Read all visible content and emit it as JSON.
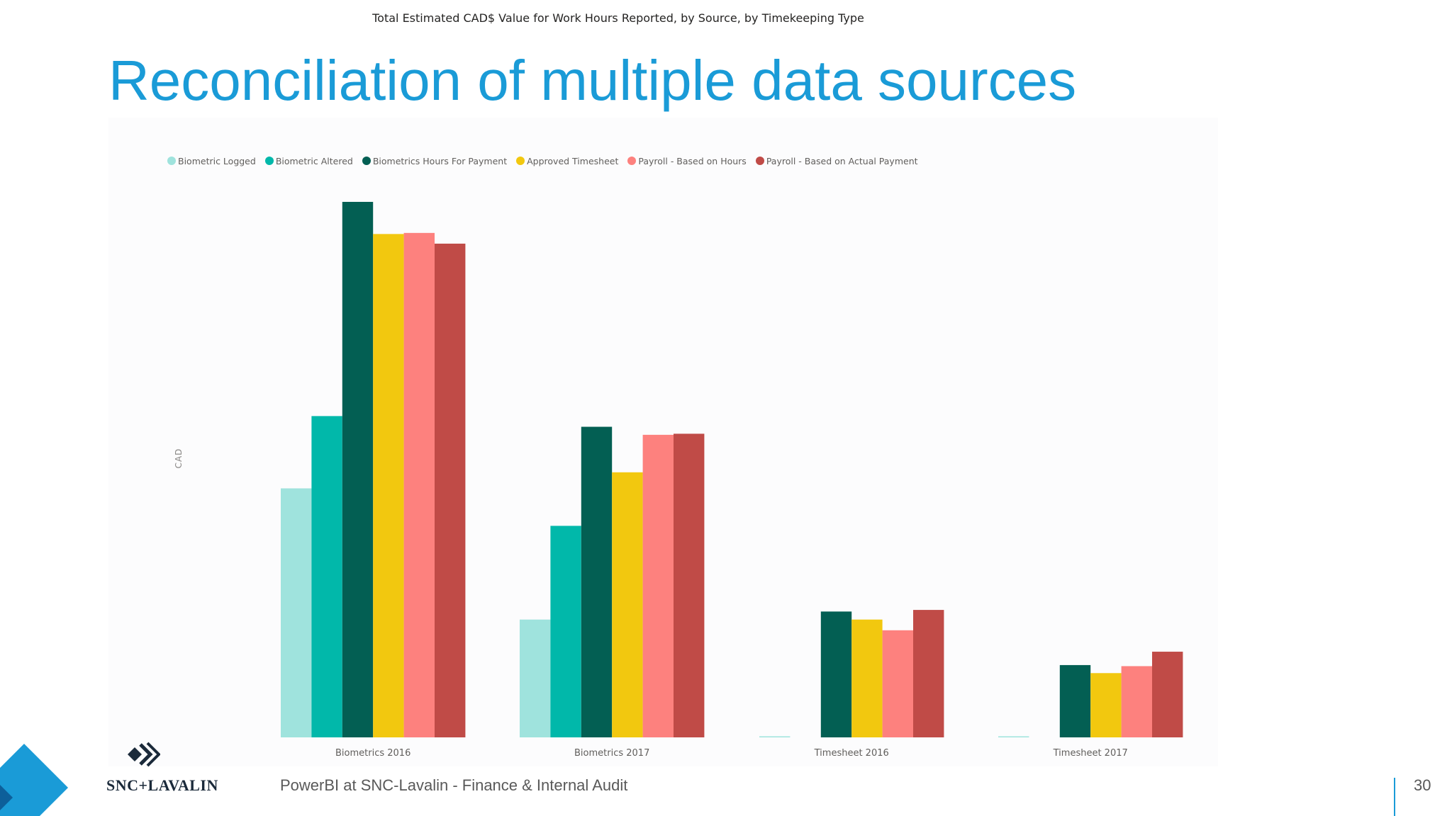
{
  "slide": {
    "title": "Reconciliation of multiple data sources",
    "footer": "PowerBI at SNC-Lavalin -  Finance & Internal Audit",
    "page_number": "30",
    "brand": "SNC+LAVALIN",
    "accent_color": "#1a9bd7"
  },
  "chart_data": {
    "type": "bar",
    "title": "Total Estimated CAD$ Value for Work Hours Reported, by Source, by Timekeeping Type",
    "xlabel": "",
    "ylabel": "CAD",
    "ylim": [
      0,
      100
    ],
    "grid": false,
    "legend_position": "top-left",
    "categories": [
      "Biometrics 2016",
      "Biometrics 2017",
      "Timesheet 2016",
      "Timesheet 2017"
    ],
    "series": [
      {
        "name": "Biometric Logged",
        "color": "#9fe3dd",
        "values": [
          46.5,
          22,
          0.2,
          0.2
        ]
      },
      {
        "name": "Biometric Altered",
        "color": "#01b8aa",
        "values": [
          60,
          39.5,
          0,
          0
        ]
      },
      {
        "name": "Biometrics Hours For Payment",
        "color": "#035f53",
        "values": [
          100,
          58,
          23.5,
          13.5
        ]
      },
      {
        "name": "Approved Timesheet",
        "color": "#f2c80f",
        "values": [
          94,
          49.5,
          22,
          12
        ]
      },
      {
        "name": "Payroll - Based on Hours",
        "color": "#fd817e",
        "values": [
          94.2,
          56.5,
          20,
          13.3
        ]
      },
      {
        "name": "Payroll - Based on Actual Payment",
        "color": "#c04b47",
        "values": [
          92.2,
          56.7,
          23.8,
          16
        ]
      }
    ]
  }
}
